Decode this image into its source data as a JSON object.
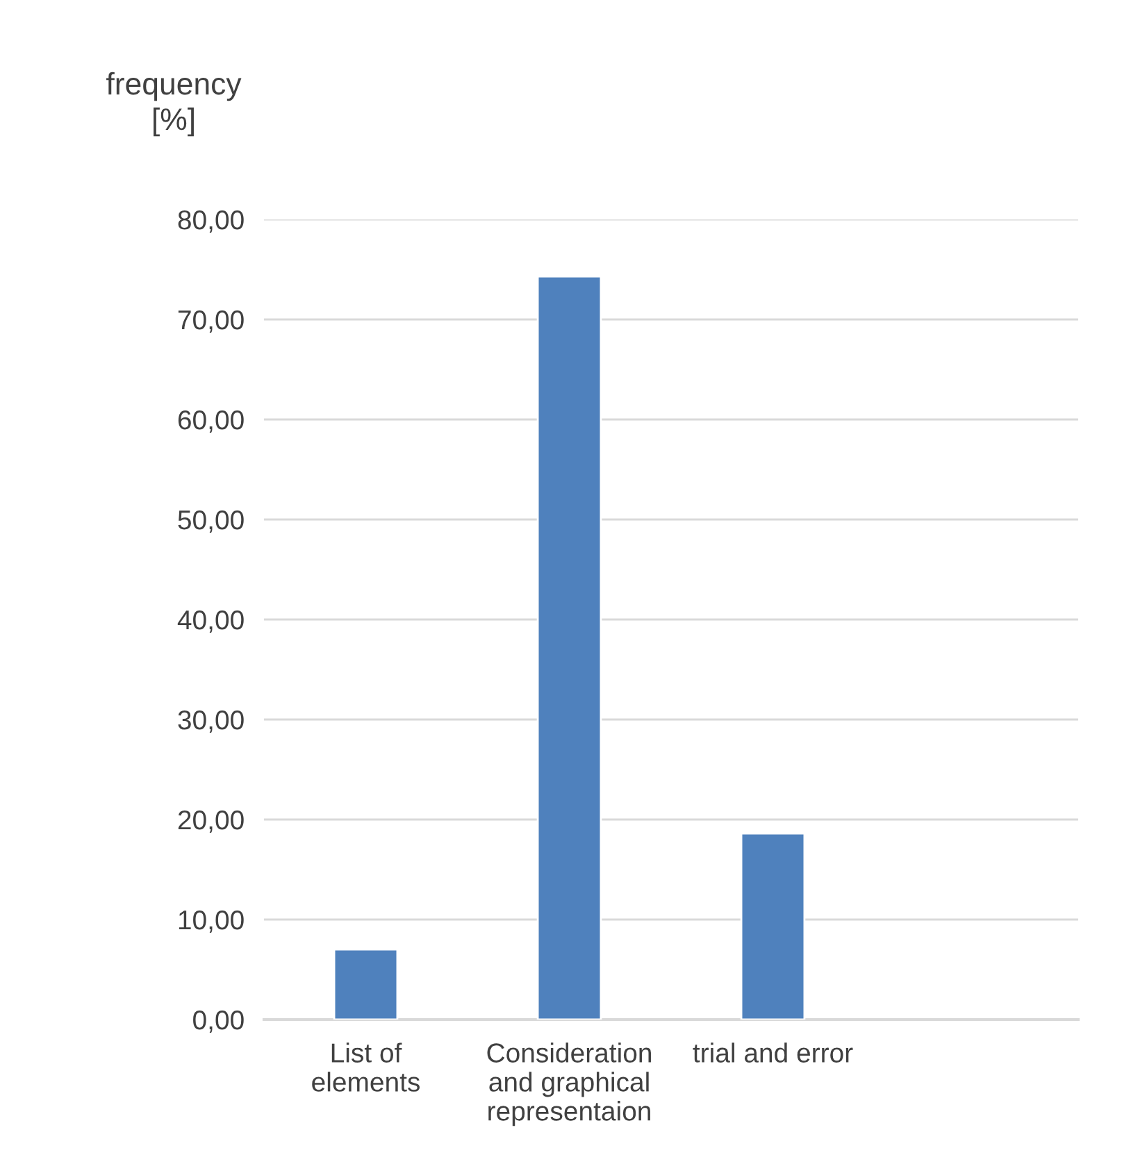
{
  "chart_data": {
    "type": "bar",
    "ylabel": "frequency\n[%]",
    "categories": [
      "List of\nelements",
      "Consideration\nand graphical\nrepresentaion",
      "trial and error",
      null
    ],
    "values": [
      7.0,
      74.3,
      18.6,
      null
    ],
    "color": "#4f81bd",
    "ylim": [
      0,
      80
    ],
    "yticks": [
      {
        "value": 0,
        "label": "0,00"
      },
      {
        "value": 10,
        "label": "10,00"
      },
      {
        "value": 20,
        "label": "20,00"
      },
      {
        "value": 30,
        "label": "30,00"
      },
      {
        "value": 40,
        "label": "40,00"
      },
      {
        "value": 50,
        "label": "50,00"
      },
      {
        "value": 60,
        "label": "60,00"
      },
      {
        "value": 70,
        "label": "70,00"
      },
      {
        "value": 80,
        "label": "80,00"
      }
    ],
    "grid": "y"
  }
}
